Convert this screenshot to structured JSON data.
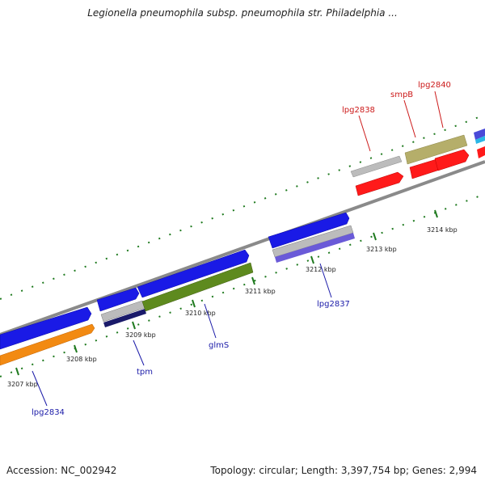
{
  "title": "Legionella pneumophila subsp. pneumophila str. Philadelphia ...",
  "footer": {
    "accession": "Accession: NC_002942",
    "summary": "Topology: circular; Length: 3,397,754 bp; Genes: 2,994"
  },
  "colors": {
    "backbone": "#8a8a8a",
    "tick": "#1f7a1f",
    "forward_label": "#1a1aa8",
    "reverse_label": "#cc1a1a"
  },
  "ticks": [
    {
      "label": "3207 kbp"
    },
    {
      "label": "3208 kbp"
    },
    {
      "label": "3209 kbp"
    },
    {
      "label": "3210 kbp"
    },
    {
      "label": "3211 kbp"
    },
    {
      "label": "3212 kbp"
    },
    {
      "label": "3213 kbp"
    },
    {
      "label": "3214 kbp"
    }
  ],
  "gene_labels": [
    {
      "text": "lpg2834",
      "strand": "forward"
    },
    {
      "text": "tpm",
      "strand": "forward"
    },
    {
      "text": "glmS",
      "strand": "forward"
    },
    {
      "text": "lpg2837",
      "strand": "forward"
    },
    {
      "text": "lpg2838",
      "strand": "reverse"
    },
    {
      "text": "smpB",
      "strand": "reverse"
    },
    {
      "text": "lpg2840",
      "strand": "reverse"
    }
  ],
  "features": [
    {
      "name": "orange-gene",
      "color": "#f28a12"
    },
    {
      "name": "lpg2834-gene",
      "color": "#1a1ae6"
    },
    {
      "name": "tpm-gene",
      "color": "#1a1ae6"
    },
    {
      "name": "tpm-subfeature",
      "color": "#bcbcbc"
    },
    {
      "name": "tpm-subfeature-dark",
      "color": "#1a1a6a"
    },
    {
      "name": "glmS-gene",
      "color": "#1a1ae6"
    },
    {
      "name": "glmS-subfeature",
      "color": "#5e8a1e"
    },
    {
      "name": "lpg2837-gene",
      "color": "#1a1ae6"
    },
    {
      "name": "lpg2837-subfeature",
      "color": "#bcbcbc"
    },
    {
      "name": "lpg2837-subfeature-violet",
      "color": "#6a5ad8"
    },
    {
      "name": "lpg2838-gene",
      "color": "#ff1a1a"
    },
    {
      "name": "lpg2838-subfeature",
      "color": "#bcbcbc"
    },
    {
      "name": "smpB-gene",
      "color": "#ff1a1a"
    },
    {
      "name": "smpB-subfeature",
      "color": "#b5ae6a"
    },
    {
      "name": "lpg2840-gene",
      "color": "#ff1a1a"
    }
  ]
}
